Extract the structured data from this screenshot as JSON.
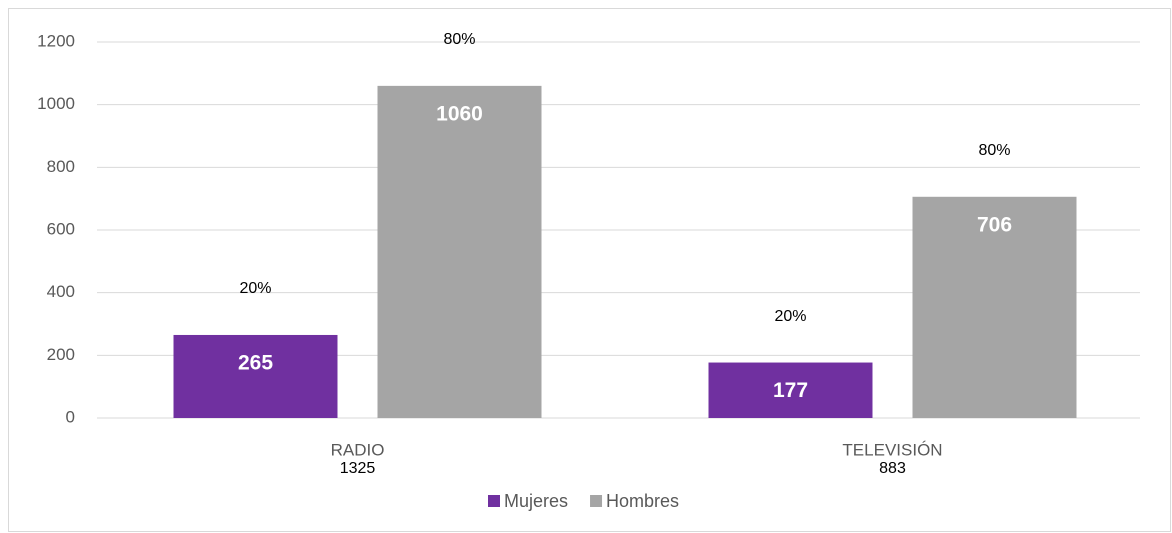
{
  "chart_data": {
    "type": "bar",
    "categories": [
      "RADIO",
      "TELEVISIÓN"
    ],
    "category_totals": [
      1325,
      883
    ],
    "series": [
      {
        "name": "Mujeres",
        "color": "#7030a0",
        "values": [
          265,
          177
        ],
        "percent_labels": [
          "20%",
          "20%"
        ]
      },
      {
        "name": "Hombres",
        "color": "#a5a5a5",
        "values": [
          1060,
          706
        ],
        "percent_labels": [
          "80%",
          "80%"
        ]
      }
    ],
    "ylim": [
      0,
      1200
    ],
    "yticks": [
      0,
      200,
      400,
      600,
      800,
      1000,
      1200
    ],
    "grid": true,
    "legend": "bottom"
  }
}
